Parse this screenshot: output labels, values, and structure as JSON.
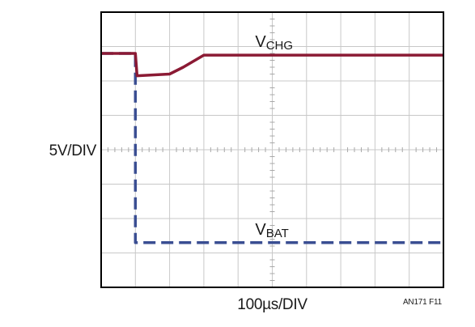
{
  "chart_data": {
    "type": "line",
    "x_divisions": 10,
    "y_divisions": 8,
    "grid": true,
    "x_scale_label": "100µs/DIV",
    "y_scale_label": "5V/DIV",
    "figure_id": "AN171 F11",
    "series": [
      {
        "name": "VCHG",
        "label_main": "V",
        "label_sub": "CHG",
        "style": "solid",
        "color": "#8b1a34",
        "points": [
          [
            0,
            6.8
          ],
          [
            1.0,
            6.8
          ],
          [
            1.05,
            6.15
          ],
          [
            2.0,
            6.2
          ],
          [
            2.4,
            6.4
          ],
          [
            3.0,
            6.75
          ],
          [
            4.0,
            6.75
          ],
          [
            10.0,
            6.75
          ]
        ]
      },
      {
        "name": "VBAT",
        "label_main": "V",
        "label_sub": "BAT",
        "style": "dashed",
        "color": "#3a4e92",
        "points": [
          [
            0,
            6.8
          ],
          [
            1.0,
            6.8
          ],
          [
            1.0,
            1.3
          ],
          [
            10.0,
            1.3
          ]
        ]
      }
    ]
  },
  "colors": {
    "frame": "#000000",
    "grid": "#c8c8c8",
    "tick": "#a8a8a8"
  }
}
